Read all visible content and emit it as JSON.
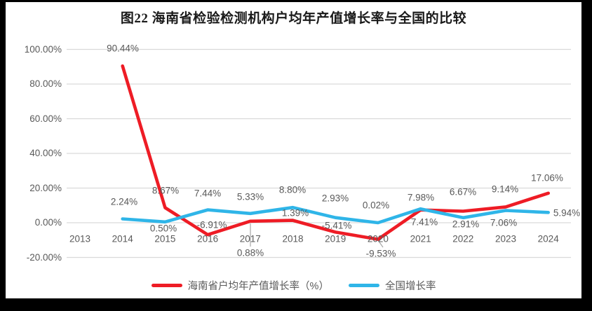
{
  "figure": {
    "frame_color": "#000000",
    "paper_color": "#ffffff"
  },
  "chart_data": {
    "type": "line",
    "title": "图22  海南省检验检测机构户均年产值增长率与全国的比较",
    "categories": [
      "2013",
      "2014",
      "2015",
      "2016",
      "2017",
      "2018",
      "2019",
      "2020",
      "2021",
      "2022",
      "2023",
      "2024"
    ],
    "series": [
      {
        "name": "海南省户均年产值增长率（%）",
        "color": "#ee1c25",
        "values": [
          null,
          90.44,
          8.67,
          -6.91,
          0.88,
          1.39,
          -5.41,
          -9.53,
          7.41,
          6.67,
          9.14,
          17.06
        ],
        "labels": [
          "",
          "90.44%",
          "8.67%",
          "-6.91%",
          "0.88%",
          "1.39%",
          "-5.41%",
          "-9.53%",
          "7.41%",
          "6.67%",
          "9.14%",
          "17.06%"
        ]
      },
      {
        "name": "全国增长率",
        "color": "#2fb5e8",
        "values": [
          null,
          2.24,
          0.5,
          7.44,
          5.33,
          8.8,
          2.93,
          0.02,
          7.98,
          2.91,
          7.06,
          5.94
        ],
        "labels": [
          "",
          "2.24%",
          "0.50%",
          "7.44%",
          "5.33%",
          "8.80%",
          "2.93%",
          "0.02%",
          "7.98%",
          "2.91%",
          "7.06%",
          "5.94%"
        ]
      }
    ],
    "y_ticks": [
      "100.00%",
      "80.00%",
      "60.00%",
      "40.00%",
      "20.00%",
      "0.00%",
      "-20.00%"
    ],
    "y_tick_values": [
      100,
      80,
      60,
      40,
      20,
      0,
      -20
    ],
    "ylim": [
      -20,
      100
    ],
    "grid": true,
    "gridline_color": "#d9d9d9",
    "label_color": "#595959",
    "leader_line_color": "#a6a6a6",
    "legend_position": "bottom",
    "xlabel": "",
    "ylabel": ""
  }
}
